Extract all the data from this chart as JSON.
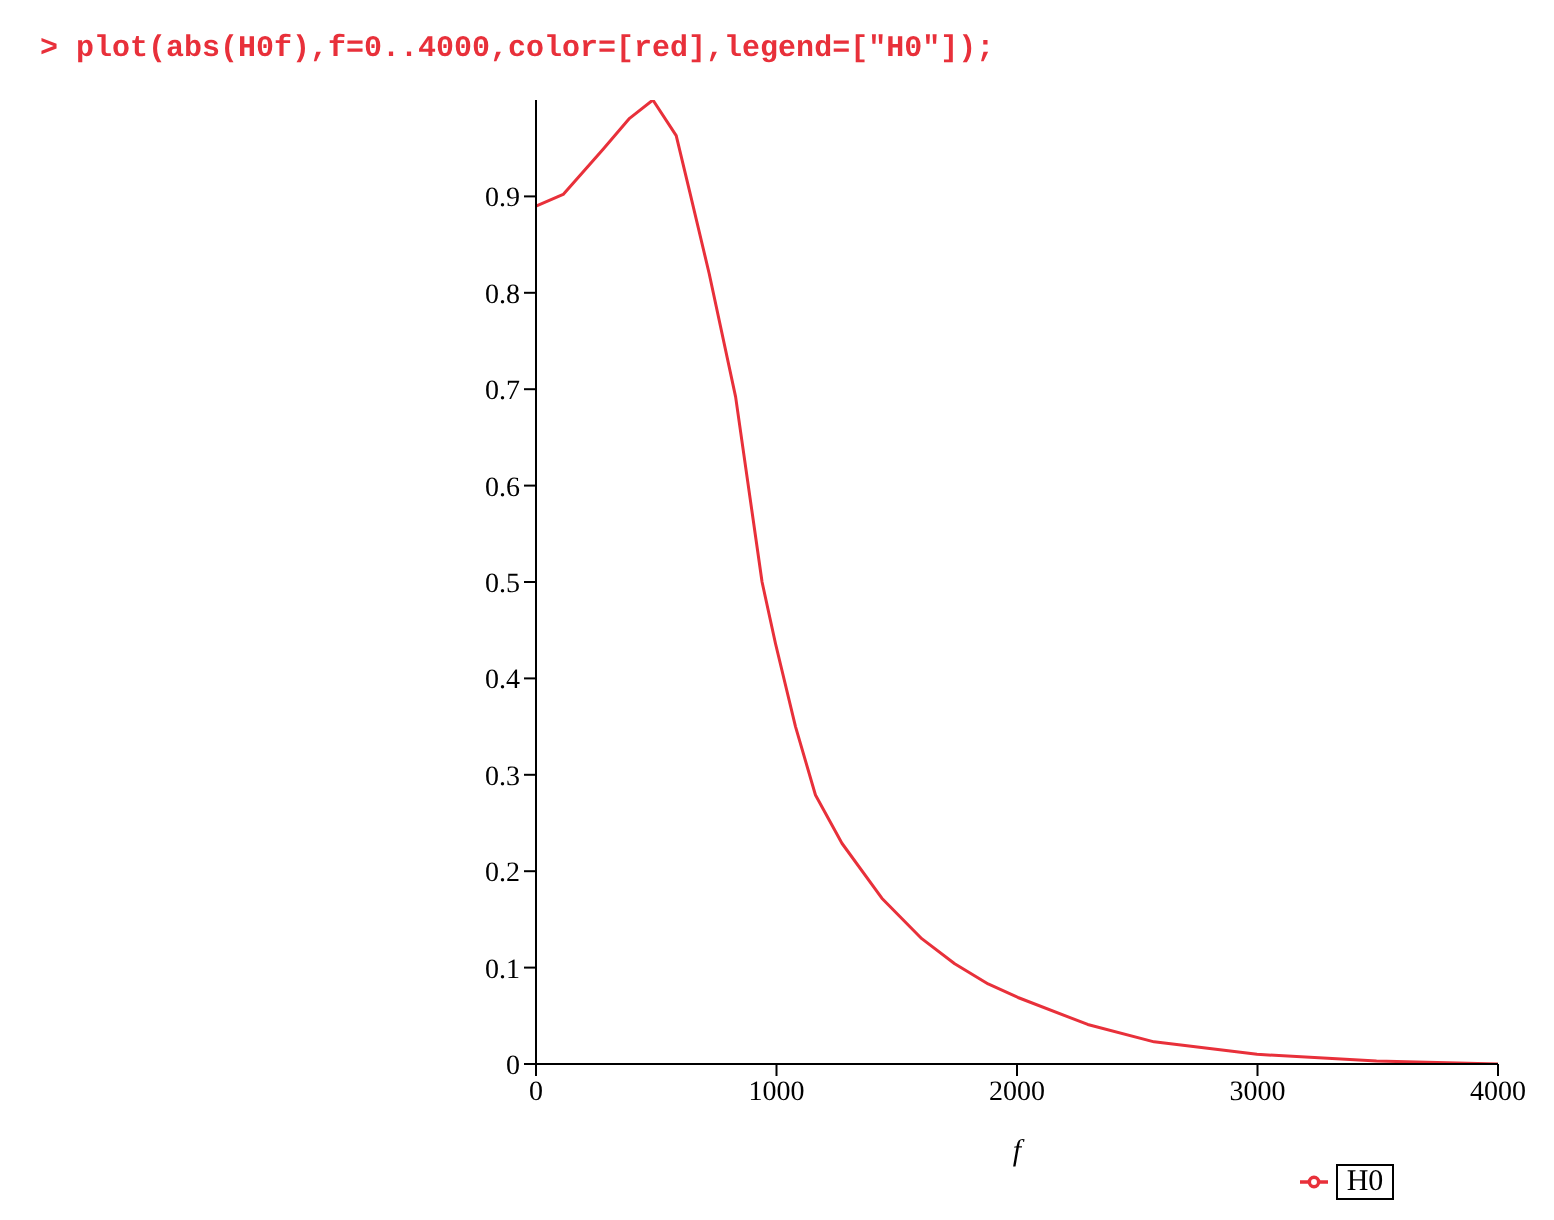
{
  "chart_data": {
    "type": "line",
    "title": "> plot(abs(H0f),f=0..4000,color=[red],legend=[\"H0\"]);",
    "xlabel": "f",
    "x": [
      0,
      113,
      279,
      389,
      486,
      583,
      638,
      720,
      830,
      940,
      996,
      1079,
      1162,
      1272,
      1438,
      1604,
      1741,
      1880,
      2004,
      2294,
      2570,
      2998,
      3495,
      4000
    ],
    "series": [
      {
        "name": "H0",
        "color": "#e8303a",
        "values": [
          0.89,
          0.902,
          0.949,
          0.981,
          1.0,
          0.963,
          0.906,
          0.82,
          0.692,
          0.5,
          0.436,
          0.35,
          0.279,
          0.229,
          0.172,
          0.13,
          0.104,
          0.083,
          0.069,
          0.041,
          0.023,
          0.01,
          0.003,
          0
        ]
      }
    ],
    "xlim": [
      0,
      4000
    ],
    "xticks": [
      0,
      1000,
      2000,
      3000,
      4000
    ],
    "ylim": [
      0,
      1
    ],
    "yticks": [
      0,
      0.1,
      0.2,
      0.3,
      0.4,
      0.5,
      0.6,
      0.7,
      0.8,
      0.9
    ],
    "grid": false,
    "legend": "bottom",
    "marker": "none",
    "line_style": "solid"
  }
}
